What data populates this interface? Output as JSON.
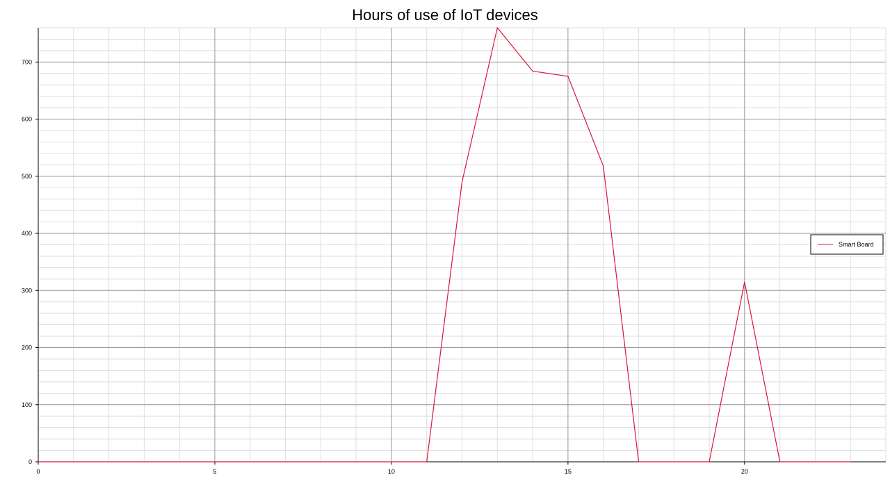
{
  "chart_data": {
    "type": "line",
    "title": "Hours of use of IoT devices",
    "xlabel": "",
    "ylabel": "",
    "xlim": [
      0,
      24
    ],
    "ylim": [
      0,
      760
    ],
    "x_ticks": [
      0,
      5,
      10,
      15,
      20
    ],
    "y_ticks": [
      0,
      100,
      200,
      300,
      400,
      500,
      600,
      700
    ],
    "grid": true,
    "minor_grid": true,
    "legend_position": "right",
    "series": [
      {
        "name": "Smart Board",
        "color": "#dc143c",
        "x": [
          0,
          1,
          2,
          3,
          4,
          5,
          6,
          7,
          8,
          9,
          10,
          11,
          12,
          13,
          14,
          15,
          16,
          17,
          18,
          19,
          20,
          21,
          22,
          23
        ],
        "values": [
          0,
          0,
          0,
          0,
          0,
          0,
          0,
          0,
          0,
          0,
          0,
          0,
          490,
          760,
          684,
          675,
          518,
          0,
          0,
          0,
          315,
          0,
          0,
          0
        ]
      }
    ]
  }
}
